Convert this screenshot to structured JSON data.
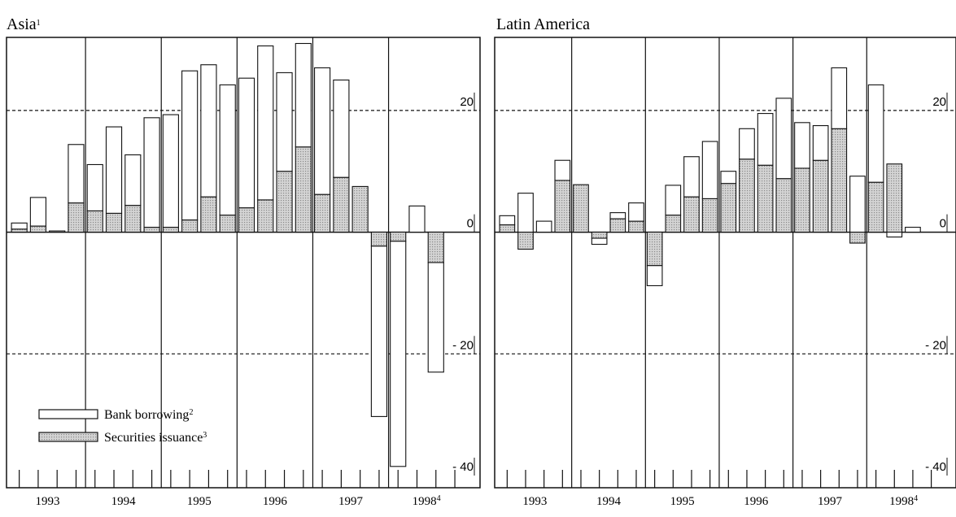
{
  "colors": {
    "bank": "#ffffff",
    "securities": "#cfcfcf",
    "stroke": "#111111"
  },
  "legend": {
    "bank_label": "Bank borrowing",
    "bank_sup": "2",
    "securities_label": "Securities issuance",
    "securities_sup": "3"
  },
  "chart_data": [
    {
      "type": "bar",
      "stacked": true,
      "title": "Asia",
      "title_sup": "1",
      "y_axis_side": "right",
      "ylim": [
        -42,
        32
      ],
      "yticks": [
        20,
        0,
        -20,
        -40
      ],
      "ytick_labels": [
        "20",
        "0",
        "- 20",
        "- 40"
      ],
      "gridlines": [
        20,
        -20
      ],
      "years": [
        "1993",
        "1994",
        "1995",
        "1996",
        "1997",
        "1998"
      ],
      "year_sups": [
        "",
        "",
        "",
        "",
        "",
        "4"
      ],
      "quarters_per_year": 4,
      "categories": [
        "1993 Q1",
        "1993 Q2",
        "1993 Q3",
        "1993 Q4",
        "1994 Q1",
        "1994 Q2",
        "1994 Q3",
        "1994 Q4",
        "1995 Q1",
        "1995 Q2",
        "1995 Q3",
        "1995 Q4",
        "1996 Q1",
        "1996 Q2",
        "1996 Q3",
        "1996 Q4",
        "1997 Q1",
        "1997 Q2",
        "1997 Q3",
        "1997 Q4",
        "1998 Q1",
        "1998 Q2",
        "1998 Q3"
      ],
      "series": [
        {
          "name": "Securities issuance",
          "values": [
            0.5,
            1.0,
            0.2,
            4.8,
            3.5,
            3.1,
            4.4,
            0.8,
            0.8,
            2.0,
            5.8,
            2.8,
            4.0,
            5.3,
            10.0,
            14.0,
            6.2,
            9.0,
            7.5,
            -2.3,
            -1.5,
            0,
            -5.0
          ]
        },
        {
          "name": "Bank borrowing",
          "values": [
            1.0,
            4.7,
            0,
            9.6,
            7.6,
            14.2,
            8.3,
            18.0,
            18.5,
            24.5,
            21.7,
            21.4,
            21.3,
            25.3,
            16.2,
            17.0,
            20.8,
            16.0,
            0,
            -28.0,
            -37.0,
            4.3,
            -18.0
          ]
        }
      ],
      "legend_position": "bottom-left"
    },
    {
      "type": "bar",
      "stacked": true,
      "title": "Latin America",
      "y_axis_side": "right",
      "ylim": [
        -42,
        32
      ],
      "yticks": [
        20,
        0,
        -20,
        -40
      ],
      "ytick_labels": [
        "20",
        "0",
        "- 20",
        "- 40"
      ],
      "gridlines": [
        20,
        -20
      ],
      "years": [
        "1993",
        "1994",
        "1995",
        "1996",
        "1997",
        "1998"
      ],
      "year_sups": [
        "",
        "",
        "",
        "",
        "",
        "4"
      ],
      "quarters_per_year": 4,
      "categories": [
        "1993 Q1",
        "1993 Q2",
        "1993 Q3",
        "1993 Q4",
        "1994 Q1",
        "1994 Q2",
        "1994 Q3",
        "1994 Q4",
        "1995 Q1",
        "1995 Q2",
        "1995 Q3",
        "1995 Q4",
        "1996 Q1",
        "1996 Q2",
        "1996 Q3",
        "1996 Q4",
        "1997 Q1",
        "1997 Q2",
        "1997 Q3",
        "1997 Q4",
        "1998 Q1",
        "1998 Q2",
        "1998 Q3"
      ],
      "series": [
        {
          "name": "Securities issuance",
          "values": [
            1.2,
            -2.8,
            0,
            8.5,
            7.8,
            -1.0,
            2.2,
            1.8,
            -5.5,
            2.8,
            5.8,
            5.5,
            8.0,
            12.0,
            11.0,
            8.8,
            10.5,
            11.8,
            17.0,
            -1.8,
            8.2,
            11.2,
            0
          ]
        },
        {
          "name": "Bank borrowing",
          "values": [
            1.5,
            6.4,
            1.8,
            3.3,
            0,
            -1.0,
            1.0,
            3.0,
            -3.3,
            4.9,
            6.6,
            9.4,
            2.0,
            5.0,
            8.5,
            13.2,
            7.5,
            5.7,
            10.0,
            9.2,
            16.0,
            -0.8,
            0.8
          ]
        }
      ],
      "legend_position": "none"
    }
  ]
}
